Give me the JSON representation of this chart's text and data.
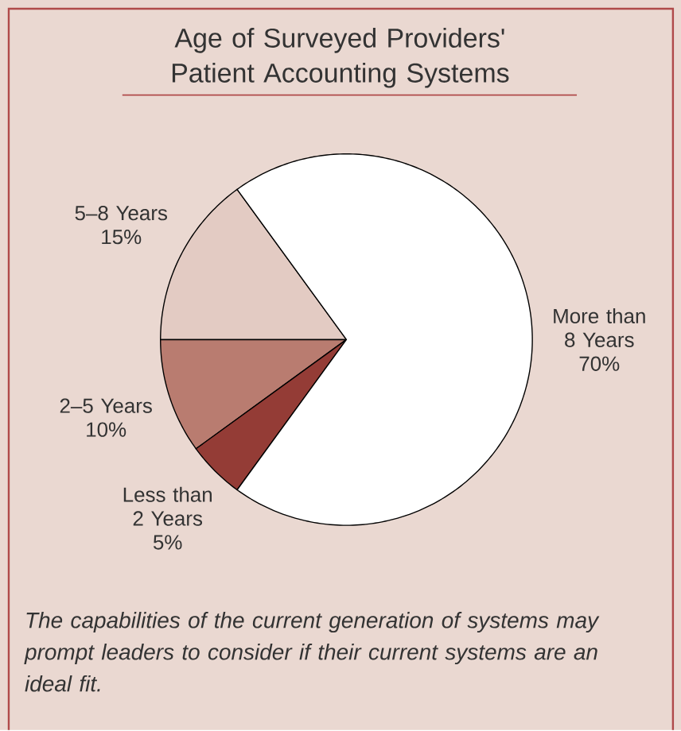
{
  "chart_data": {
    "type": "pie",
    "title": "Age of Surveyed Providers' Patient Accounting Systems",
    "categories": [
      "5–8 Years",
      "2–5 Years",
      "Less than 2 Years",
      "More than 8 Years"
    ],
    "values": [
      15,
      10,
      5,
      70
    ],
    "value_labels": [
      "15%",
      "10%",
      "5%",
      "70%"
    ],
    "colors": [
      "#e3cbc3",
      "#b97c70",
      "#943c36",
      "#ffffff"
    ],
    "annotations": [
      "*The capabilities of the current generation of systems may prompt leaders to consider if their current systems are an ideal fit.*"
    ]
  }
}
